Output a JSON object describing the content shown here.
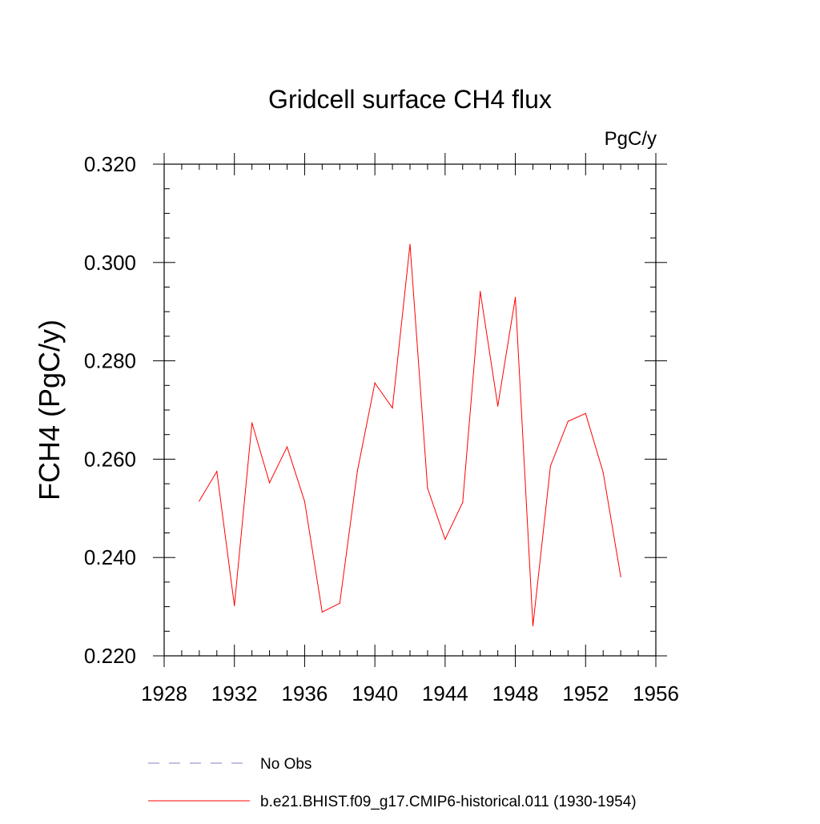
{
  "chart_data": {
    "type": "line",
    "title": "Gridcell surface CH4 flux",
    "units": "PgC/y",
    "ylabel": "FCH4  (PgC/y)",
    "xlabel": "",
    "xlim": [
      1928,
      1956
    ],
    "ylim": [
      0.22,
      0.32
    ],
    "x_ticks": [
      1928,
      1932,
      1936,
      1940,
      1944,
      1948,
      1952,
      1956
    ],
    "x_tick_labels": [
      "1928",
      "1932",
      "1936",
      "1940",
      "1944",
      "1948",
      "1952",
      "1956"
    ],
    "y_ticks": [
      0.22,
      0.24,
      0.26,
      0.28,
      0.3,
      0.32
    ],
    "y_tick_labels": [
      "0.220",
      "0.240",
      "0.260",
      "0.280",
      "0.300",
      "0.320"
    ],
    "grid": false,
    "legend_position": "bottom",
    "series": [
      {
        "name": "b.e21.BHIST.f09_g17.CMIP6-historical.011 (1930-1954)",
        "color": "#ff0000",
        "dash": "solid",
        "x": [
          1930,
          1931,
          1932,
          1933,
          1934,
          1935,
          1936,
          1937,
          1938,
          1939,
          1940,
          1941,
          1942,
          1943,
          1944,
          1945,
          1946,
          1947,
          1948,
          1949,
          1950,
          1951,
          1952,
          1953,
          1954
        ],
        "values": [
          0.2515,
          0.2575,
          0.2302,
          0.2674,
          0.2552,
          0.2625,
          0.2514,
          0.2289,
          0.2307,
          0.2575,
          0.2755,
          0.2704,
          0.3037,
          0.2541,
          0.2437,
          0.2512,
          0.2941,
          0.2708,
          0.2929,
          0.2261,
          0.2586,
          0.2677,
          0.2693,
          0.2573,
          0.2361
        ]
      }
    ],
    "legend": [
      {
        "label": "No Obs",
        "color": "#8080c0",
        "dash": "dashed"
      },
      {
        "label": "b.e21.BHIST.f09_g17.CMIP6-historical.011 (1930-1954)",
        "color": "#ff0000",
        "dash": "solid"
      }
    ]
  }
}
